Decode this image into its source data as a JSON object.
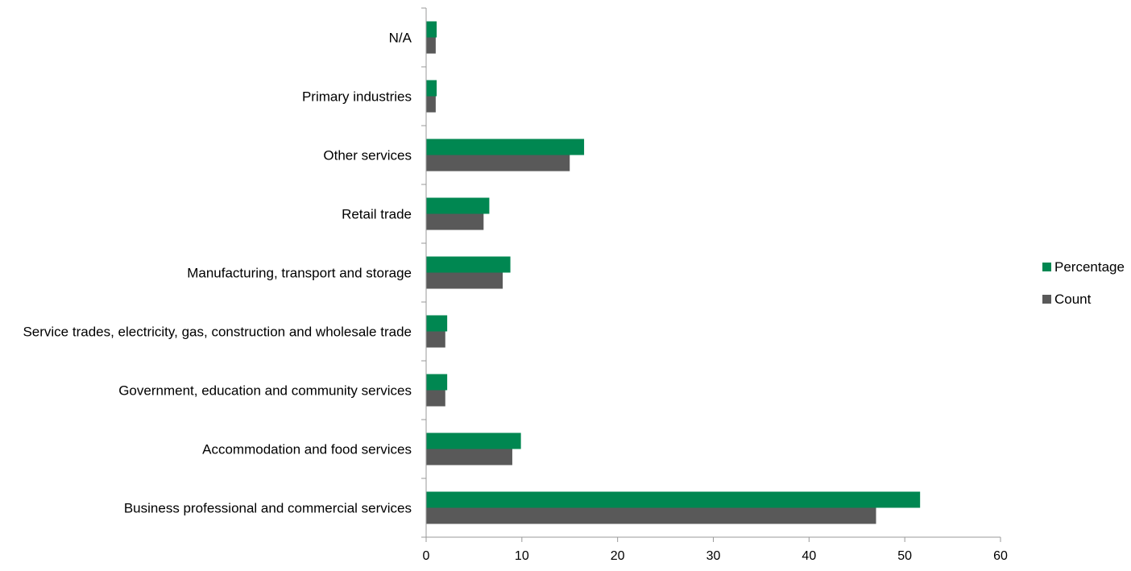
{
  "chart_data": {
    "type": "bar",
    "orientation": "horizontal",
    "categories": [
      "Business professional and commercial services",
      "Accommodation and food services",
      "Government, education and community services",
      "Service trades, electricity, gas, construction and wholesale trade",
      "Manufacturing, transport and storage",
      "Retail trade",
      "Other services",
      "Primary industries",
      "N/A"
    ],
    "series": [
      {
        "name": "Percentage",
        "color": "#008751",
        "values": [
          51.6,
          9.9,
          2.2,
          2.2,
          8.8,
          6.6,
          16.5,
          1.1,
          1.1
        ]
      },
      {
        "name": "Count",
        "color": "#595959",
        "values": [
          47,
          9,
          2,
          2,
          8,
          6,
          15,
          1,
          1
        ]
      }
    ],
    "xlim": [
      0,
      60
    ],
    "x_ticks": [
      0,
      10,
      20,
      30,
      40,
      50,
      60
    ],
    "title": "",
    "xlabel": "",
    "ylabel": "",
    "grid": false,
    "legend_position": "right"
  }
}
